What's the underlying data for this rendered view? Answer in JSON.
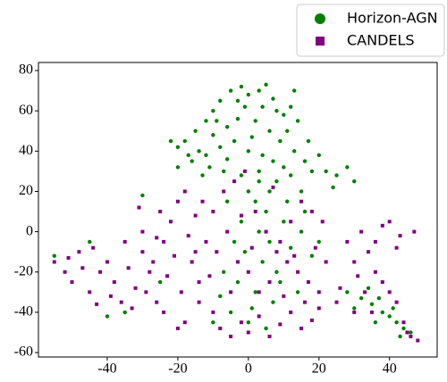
{
  "chart_data": {
    "type": "scatter",
    "xlim": [
      -59.5,
      53.5
    ],
    "xticks": [
      -40,
      -20,
      0,
      20,
      40
    ],
    "ylim": [
      -62.2,
      84
    ],
    "yticks": [
      -60,
      -40,
      -20,
      0,
      20,
      40,
      60,
      80
    ],
    "legend": "upper right",
    "series": [
      {
        "name": "Horizon-AGN",
        "color": "#008000",
        "marker": "circle",
        "x": [
          -18,
          -15,
          -12,
          -10,
          -8,
          -5,
          -2,
          0,
          3,
          5,
          8,
          10,
          12,
          14,
          -14,
          -10,
          -6,
          -3,
          2,
          6,
          9,
          13,
          16,
          18,
          -16,
          -12,
          -8,
          -4,
          0,
          4,
          7,
          10,
          -20,
          -17,
          -7,
          -2,
          3,
          8,
          12,
          15,
          -11,
          -6,
          1,
          -1,
          4,
          11,
          -9,
          17,
          20,
          -20,
          -3,
          7,
          13,
          -13,
          22,
          25,
          28,
          30,
          24,
          -22,
          0,
          2,
          5,
          -2,
          3,
          6,
          -1,
          4,
          8,
          -3,
          2,
          7,
          -5,
          0,
          5,
          10,
          12,
          15,
          -6,
          -4,
          9,
          18,
          14,
          -8,
          -10,
          1,
          11,
          16,
          20,
          -7,
          3,
          6,
          28,
          32,
          35,
          38,
          40,
          42,
          44,
          46,
          34,
          30,
          37,
          43,
          41,
          36,
          -55,
          -45,
          -35,
          -40,
          -25,
          -30
        ],
        "values": [
          45,
          50,
          55,
          60,
          65,
          70,
          72,
          68,
          70,
          73,
          60,
          58,
          62,
          55,
          40,
          48,
          52,
          56,
          55,
          50,
          45,
          40,
          35,
          30,
          35,
          38,
          42,
          45,
          40,
          38,
          35,
          32,
          42,
          38,
          30,
          28,
          30,
          25,
          28,
          20,
          32,
          36,
          47,
          62,
          62,
          50,
          55,
          45,
          38,
          32,
          65,
          66,
          70,
          28,
          30,
          28,
          32,
          25,
          22,
          45,
          20,
          15,
          10,
          5,
          0,
          -5,
          -10,
          -15,
          -20,
          -25,
          -30,
          -35,
          -40,
          -45,
          -48,
          5,
          -8,
          0,
          15,
          -5,
          -25,
          -12,
          -30,
          -32,
          -45,
          -38,
          15,
          10,
          -5,
          -20,
          25,
          20,
          -30,
          -33,
          -36,
          -40,
          -42,
          -45,
          -48,
          -50,
          -28,
          -38,
          -33,
          -52,
          -38,
          -45,
          -12,
          -5,
          -40,
          -42,
          -25,
          18
        ]
      },
      {
        "name": "CANDELS",
        "color": "#800080",
        "marker": "square",
        "x": [
          -55,
          -52,
          -50,
          -48,
          -45,
          -42,
          -40,
          -38,
          -36,
          -34,
          -32,
          -30,
          -28,
          -26,
          -24,
          -22,
          -20,
          -18,
          -25,
          -30,
          -35,
          -44,
          -47,
          -33,
          -29,
          -23,
          -21,
          -17,
          -19,
          -15,
          -13,
          -27,
          -39,
          -51,
          -43,
          -31,
          -26,
          -16,
          -14,
          -12,
          -24,
          -10,
          -8,
          -5,
          -2,
          0,
          3,
          6,
          9,
          12,
          15,
          18,
          20,
          -10,
          -7,
          -4,
          -1,
          2,
          5,
          8,
          11,
          14,
          17,
          20,
          -9,
          -6,
          -3,
          0,
          3,
          6,
          9,
          12,
          15,
          18,
          21,
          -11,
          -14,
          -18,
          -20,
          22,
          19,
          13,
          16,
          -2,
          7,
          10,
          -15,
          -5,
          1,
          28,
          30,
          32,
          34,
          36,
          38,
          40,
          42,
          44,
          46,
          48,
          45,
          33,
          30,
          36,
          38,
          40,
          42,
          35,
          43,
          47,
          31,
          26,
          25
        ],
        "values": [
          -15,
          -20,
          -25,
          -10,
          -30,
          -20,
          -15,
          -25,
          -35,
          -18,
          -28,
          -10,
          -20,
          -35,
          -5,
          5,
          15,
          20,
          10,
          0,
          -5,
          -8,
          -18,
          -38,
          -30,
          -22,
          -12,
          -2,
          -30,
          8,
          15,
          -15,
          -32,
          -13,
          -36,
          12,
          -3,
          -15,
          -25,
          -5,
          -40,
          -40,
          -48,
          -52,
          -45,
          -50,
          -42,
          -52,
          -46,
          -40,
          -48,
          -44,
          -38,
          10,
          20,
          25,
          30,
          10,
          0,
          -10,
          -15,
          -20,
          -25,
          -30,
          -10,
          0,
          -15,
          -20,
          -30,
          -25,
          -5,
          5,
          15,
          10,
          5,
          -22,
          -35,
          -45,
          -48,
          -15,
          -8,
          -12,
          -35,
          8,
          22,
          -32,
          -10,
          -30,
          -8,
          -5,
          -15,
          0,
          -10,
          -20,
          -25,
          -30,
          -35,
          -45,
          -52,
          -54,
          -50,
          -30,
          -40,
          -5,
          3,
          5,
          -8,
          -40,
          -2,
          0,
          -22,
          -28,
          -35
        ]
      }
    ]
  }
}
